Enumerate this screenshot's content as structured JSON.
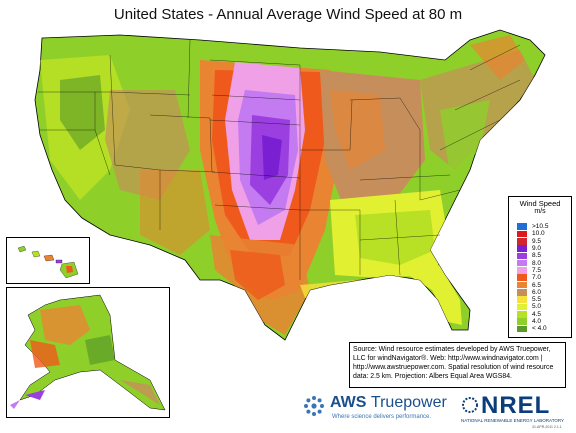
{
  "title": "United States - Annual Average Wind Speed at 80 m",
  "legend": {
    "title": "Wind Speed",
    "unit": "m/s",
    "classes": [
      {
        "label": ">10.5",
        "color": "#1f6fd6"
      },
      {
        "label": "10.0",
        "color": "#e0181c"
      },
      {
        "label": "9.5",
        "color": "#d2262e"
      },
      {
        "label": "9.0",
        "color": "#7b1fd2"
      },
      {
        "label": "8.5",
        "color": "#9b3fe0"
      },
      {
        "label": "8.0",
        "color": "#c47af0"
      },
      {
        "label": "7.5",
        "color": "#f0a0e6"
      },
      {
        "label": "7.0",
        "color": "#ef5a1c"
      },
      {
        "label": "6.5",
        "color": "#e88432"
      },
      {
        "label": "6.0",
        "color": "#c68e5a"
      },
      {
        "label": "5.5",
        "color": "#f6e23a"
      },
      {
        "label": "5.0",
        "color": "#e2f032"
      },
      {
        "label": "4.5",
        "color": "#b8e024"
      },
      {
        "label": "4.0",
        "color": "#8fcf2a"
      },
      {
        "label": "< 4.0",
        "color": "#5a9a2a"
      }
    ]
  },
  "source_note": "Source: Wind resource estimates developed by AWS Truepower, LLC for windNavigator®. Web: http://www.windnavigator.com | http://www.awstruepower.com. Spatial resolution of wind resource data: 2.5 km. Projection: Albers Equal Area WGS84.",
  "aws_logo": {
    "name_a": "AWS",
    "name_b": "Truepower",
    "tagline": "Where science delivers performance."
  },
  "nrel_logo": {
    "name": "NREL",
    "subtitle": "NATIONAL RENEWABLE ENERGY LABORATORY"
  },
  "credit": "31-APR-2011 2.1.1"
}
